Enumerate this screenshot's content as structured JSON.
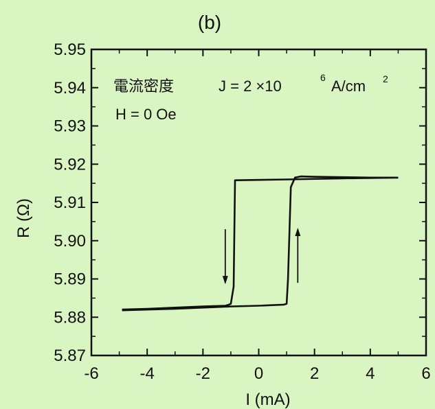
{
  "chart_data": {
    "type": "line",
    "panel_label": "(b)",
    "xlabel": "I (mA)",
    "ylabel": "R (Ω)",
    "xlim": [
      -6,
      6
    ],
    "ylim": [
      5.87,
      5.95
    ],
    "xticks": [
      -6,
      -4,
      -2,
      0,
      2,
      4,
      6
    ],
    "xtick_labels": [
      "-6",
      "-4",
      "-2",
      "0",
      "2",
      "4",
      "6"
    ],
    "yticks": [
      5.87,
      5.88,
      5.89,
      5.9,
      5.91,
      5.92,
      5.93,
      5.94,
      5.95
    ],
    "ytick_labels": [
      "5.87",
      "5.88",
      "5.89",
      "5.90",
      "5.91",
      "5.92",
      "5.93",
      "5.94",
      "5.95"
    ],
    "annotations": {
      "current_density_label": "電流密度",
      "current_density_formula": "J = 2 ×10",
      "current_density_exponent": "6",
      "current_density_unit": "A/cm",
      "current_density_unit_exp": "2",
      "field": "H = 0 Oe"
    },
    "series": [
      {
        "x": [
          5.0,
          3.0,
          1.0,
          -0.85,
          -0.9,
          -1.0,
          -1.1,
          -1.2,
          -2.0,
          -3.0,
          -4.0,
          -4.9
        ],
        "y": [
          5.9165,
          5.9163,
          5.916,
          5.9158,
          5.888,
          5.8835,
          5.8832,
          5.883,
          5.8828,
          5.8825,
          5.8822,
          5.882
        ]
      },
      {
        "x": [
          -4.9,
          -3.0,
          -1.0,
          0.0,
          0.9,
          1.0,
          1.05,
          1.15,
          1.3,
          1.5,
          2.0,
          3.0,
          4.0,
          5.0
        ],
        "y": [
          5.8818,
          5.8822,
          5.8828,
          5.883,
          5.8833,
          5.8835,
          5.89,
          5.914,
          5.9165,
          5.9168,
          5.9167,
          5.9166,
          5.9165,
          5.9165
        ]
      }
    ],
    "arrows": [
      {
        "direction": "down",
        "x": -1.2,
        "y_from": 5.903,
        "y_to": 5.889
      },
      {
        "direction": "up",
        "x": 1.4,
        "y_from": 5.889,
        "y_to": 5.903
      }
    ]
  }
}
